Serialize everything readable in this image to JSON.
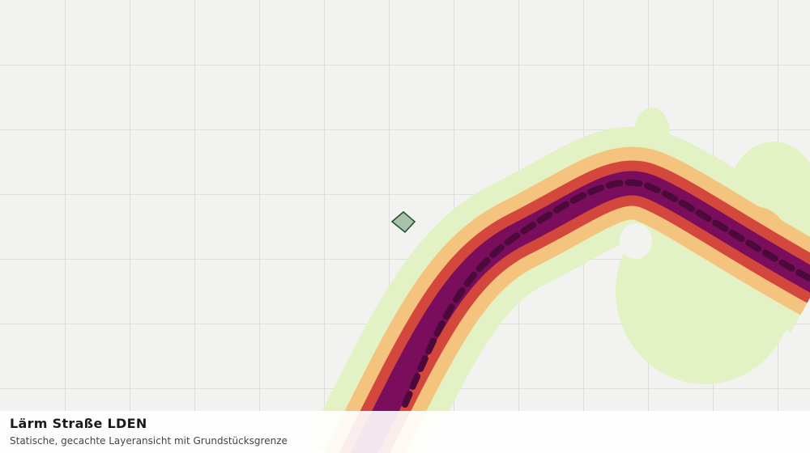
{
  "caption": {
    "title": "Lärm Straße LDEN",
    "subtitle": "Statische, gecachte Layeransicht mit Grundstücksgrenze"
  }
}
